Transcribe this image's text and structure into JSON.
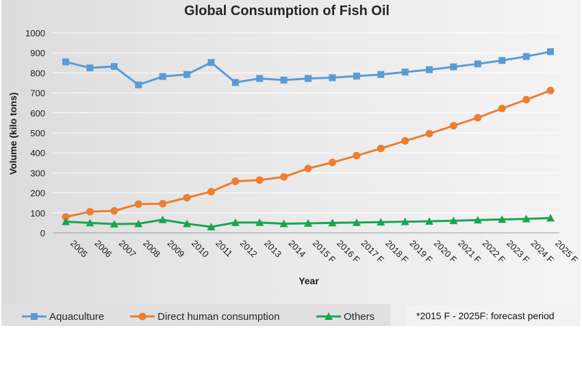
{
  "chart_data": {
    "type": "line",
    "title": "Global Consumption of Fish Oil",
    "xlabel": "Year",
    "ylabel": "Volume (kilo tons)",
    "ylim": [
      0,
      1000
    ],
    "yticks": [
      0,
      100,
      200,
      300,
      400,
      500,
      600,
      700,
      800,
      900,
      1000
    ],
    "grid": "horizontal",
    "legend_position": "bottom",
    "categories": [
      "2005",
      "2006",
      "2007",
      "2008",
      "2009",
      "2010",
      "2011",
      "2012",
      "2013",
      "2014",
      "2015 F",
      "2016 F",
      "2017 F",
      "2018 F",
      "2019 F",
      "2020 F",
      "2021 F",
      "2022 F",
      "2023 F",
      "2024 F",
      "2025 F"
    ],
    "series": [
      {
        "name": "Aquaculture",
        "color": "#5b9bd5",
        "marker": "square",
        "values": [
          855,
          825,
          832,
          740,
          782,
          792,
          852,
          752,
          772,
          764,
          772,
          776,
          784,
          792,
          804,
          816,
          830,
          845,
          862,
          882,
          906
        ]
      },
      {
        "name": "Direct human consumption",
        "color": "#ed7d31",
        "marker": "circle",
        "values": [
          80,
          106,
          110,
          144,
          146,
          176,
          206,
          258,
          264,
          280,
          322,
          352,
          386,
          422,
          460,
          496,
          536,
          576,
          622,
          666,
          712
        ]
      },
      {
        "name": "Others",
        "color": "#18a550",
        "marker": "triangle",
        "values": [
          56,
          50,
          44,
          46,
          66,
          46,
          30,
          52,
          52,
          46,
          48,
          50,
          52,
          54,
          56,
          58,
          61,
          64,
          67,
          70,
          74
        ]
      }
    ],
    "note": "*2015 F - 2025F: forecast period"
  }
}
